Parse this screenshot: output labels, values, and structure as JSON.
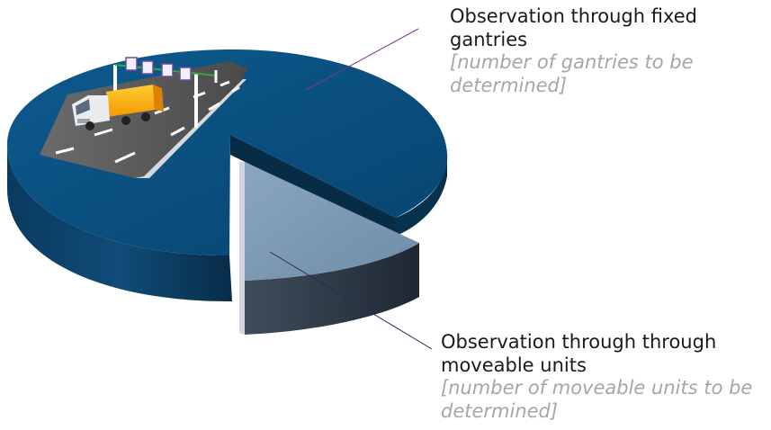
{
  "slices": [
    {
      "id": "fixed-gantries",
      "title": "Observation through fixed gantries",
      "note": "[number of gantries to be determined]",
      "color": "#0b5283"
    },
    {
      "id": "moveable-units",
      "title": "Observation through through moveable units",
      "note": "[number of moveable units to be determined]",
      "color": "#7c9ab5"
    }
  ],
  "leader_line_color": "#7a3a8a"
}
